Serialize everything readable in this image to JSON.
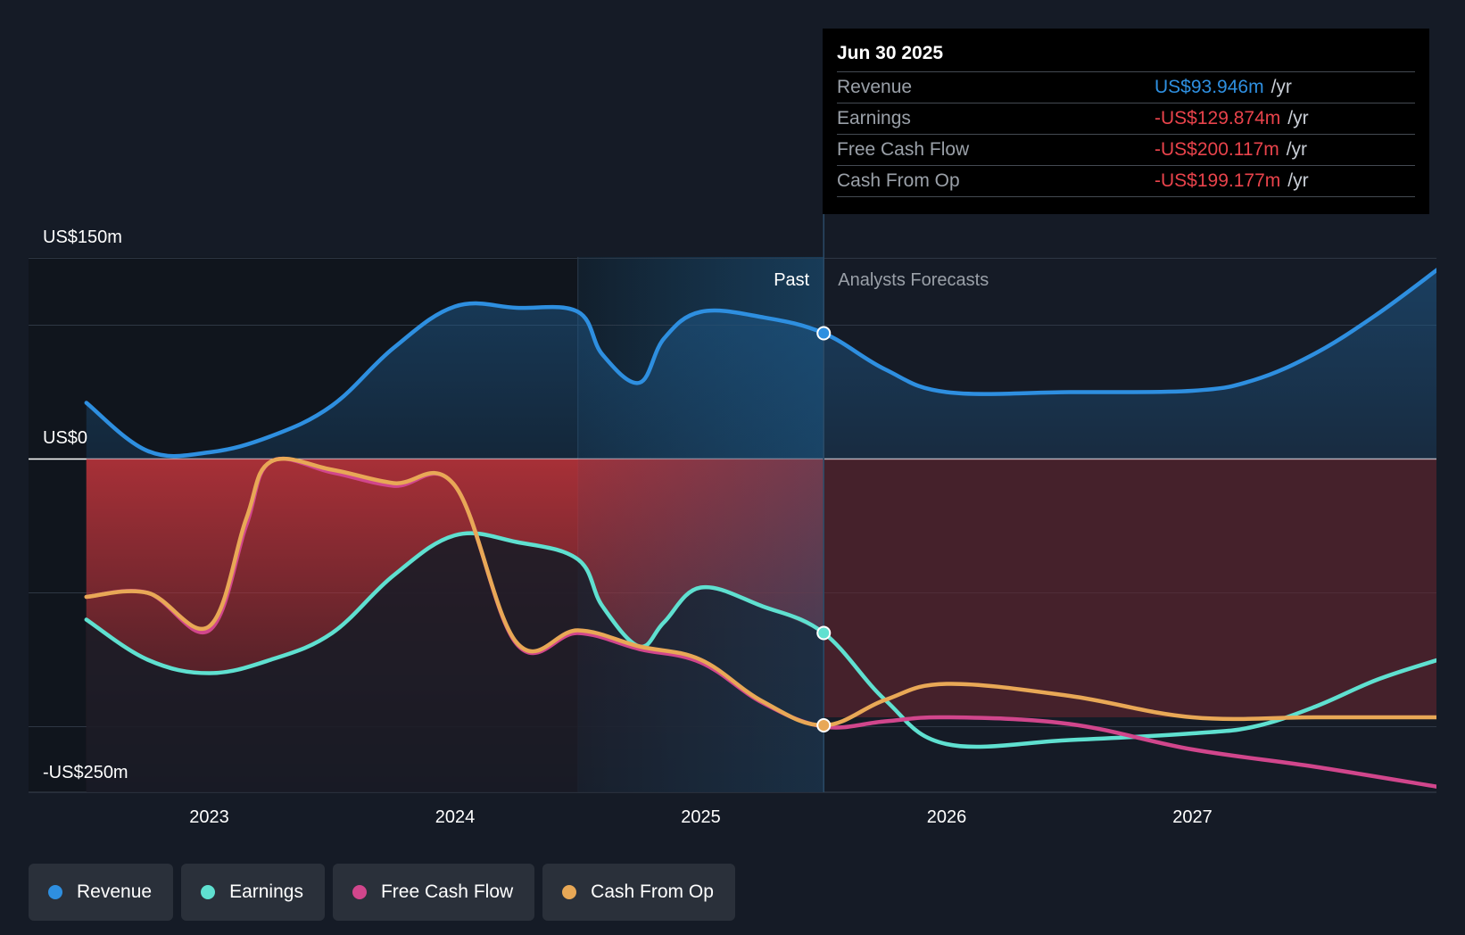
{
  "tooltip": {
    "date": "Jun 30 2025",
    "rows": [
      {
        "label": "Revenue",
        "value": "US$93.946m",
        "unit": "/yr",
        "color": "#2e8fe0"
      },
      {
        "label": "Earnings",
        "value": "-US$129.874m",
        "unit": "/yr",
        "color": "#e8434b"
      },
      {
        "label": "Free Cash Flow",
        "value": "-US$200.117m",
        "unit": "/yr",
        "color": "#e8434b"
      },
      {
        "label": "Cash From Op",
        "value": "-US$199.177m",
        "unit": "/yr",
        "color": "#e8434b"
      }
    ]
  },
  "regions": {
    "past_label": "Past",
    "forecast_label": "Analysts Forecasts"
  },
  "legend": [
    {
      "label": "Revenue",
      "color": "#2e8fe0"
    },
    {
      "label": "Earnings",
      "color": "#5fe0d0"
    },
    {
      "label": "Free Cash Flow",
      "color": "#d1468c"
    },
    {
      "label": "Cash From Op",
      "color": "#e8a856"
    }
  ],
  "chart_data": {
    "type": "line",
    "y_tick_labels": [
      "US$150m",
      "US$0",
      "-US$250m"
    ],
    "x_tick_labels": [
      "2023",
      "2024",
      "2025",
      "2026",
      "2027"
    ],
    "x_ticks": [
      2023.0,
      2024.0,
      2025.0,
      2026.0,
      2027.0
    ],
    "xlim": [
      2022.25,
      2028.0
    ],
    "ylim": [
      -250,
      150
    ],
    "y_gridlines": [
      150,
      100,
      0,
      -100,
      -200
    ],
    "past_shade_start": 2024.5,
    "divider_x": 2025.5,
    "series": [
      {
        "name": "Revenue",
        "color": "#2e8fe0",
        "x": [
          2022.5,
          2022.75,
          2023.0,
          2023.25,
          2023.5,
          2023.75,
          2024.0,
          2024.25,
          2024.5,
          2024.6,
          2024.75,
          2024.85,
          2025.0,
          2025.25,
          2025.5,
          2025.75,
          2026.0,
          2026.5,
          2027.0,
          2027.25,
          2027.5,
          2027.75,
          2028.0
        ],
        "y": [
          42,
          6,
          5,
          17,
          40,
          83,
          114,
          113,
          110,
          78,
          57,
          90,
          110,
          106,
          94,
          67,
          50,
          50,
          51,
          59,
          79,
          108,
          142
        ]
      },
      {
        "name": "Earnings",
        "color": "#5fe0d0",
        "x": [
          2022.5,
          2022.75,
          2023.0,
          2023.25,
          2023.5,
          2023.75,
          2024.0,
          2024.25,
          2024.5,
          2024.6,
          2024.75,
          2024.85,
          2025.0,
          2025.25,
          2025.5,
          2025.75,
          2026.0,
          2026.5,
          2027.0,
          2027.25,
          2027.5,
          2027.75,
          2028.0
        ],
        "y": [
          -120,
          -150,
          -160,
          -150,
          -130,
          -87,
          -57,
          -62,
          -75,
          -110,
          -140,
          -122,
          -96,
          -110,
          -130,
          -180,
          -213,
          -210,
          -205,
          -200,
          -185,
          -165,
          -150
        ]
      },
      {
        "name": "Free Cash Flow",
        "color": "#d1468c",
        "x": [
          2022.5,
          2022.75,
          2023.0,
          2023.15,
          2023.25,
          2023.5,
          2023.75,
          2024.0,
          2024.25,
          2024.5,
          2024.75,
          2025.0,
          2025.25,
          2025.5,
          2025.75,
          2026.0,
          2026.5,
          2027.0,
          2027.5,
          2028.0
        ],
        "y": [
          -103,
          -100,
          -128,
          -50,
          -2,
          -10,
          -20,
          -20,
          -138,
          -130,
          -142,
          -152,
          -182,
          -200,
          -196,
          -193,
          -198,
          -217,
          -230,
          -245
        ]
      },
      {
        "name": "Cash From Op",
        "color": "#e8a856",
        "x": [
          2022.5,
          2022.75,
          2023.0,
          2023.15,
          2023.25,
          2023.5,
          2023.75,
          2024.0,
          2024.25,
          2024.5,
          2024.75,
          2025.0,
          2025.25,
          2025.5,
          2025.75,
          2026.0,
          2026.5,
          2027.0,
          2027.5,
          2028.0
        ],
        "y": [
          -103,
          -100,
          -125,
          -45,
          -2,
          -8,
          -18,
          -20,
          -137,
          -128,
          -140,
          -150,
          -181,
          -199,
          -180,
          -168,
          -177,
          -193,
          -193,
          -193
        ]
      }
    ]
  }
}
